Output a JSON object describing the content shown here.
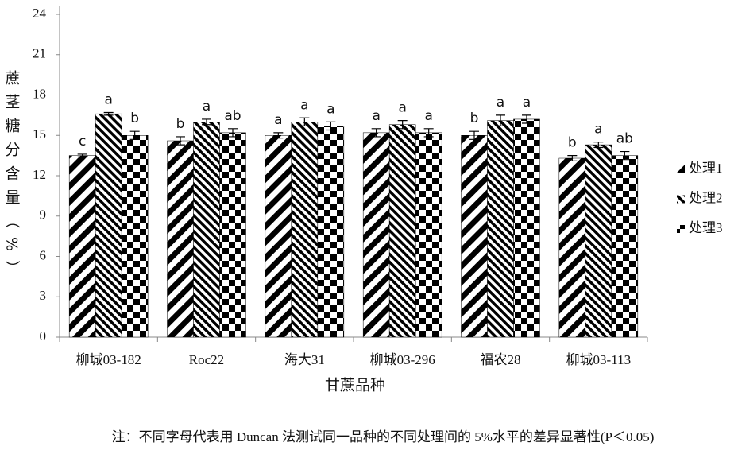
{
  "chart_data": {
    "type": "bar",
    "y_label": "蔗茎糖分含量（%）",
    "x_label": "甘蔗品种",
    "note": "注：不同字母代表用 Duncan 法测试同一品种的不同处理间的 5%水平的差异显著性(P＜0.05)",
    "categories": [
      "柳城03-182",
      "Roc22",
      "海大31",
      "柳城03-296",
      "福农28",
      "柳城03-113"
    ],
    "series": [
      {
        "name": "处理1",
        "color": "#000000",
        "pattern": "stripes",
        "values": [
          13.5,
          14.6,
          15.0,
          15.2,
          15.0,
          13.3
        ],
        "errors": [
          0.1,
          0.3,
          0.2,
          0.3,
          0.3,
          0.2
        ],
        "letters": [
          "c",
          "b",
          "a",
          "a",
          "b",
          "b"
        ]
      },
      {
        "name": "处理2",
        "color": "#000000",
        "pattern": "hatch",
        "values": [
          16.6,
          16.0,
          16.0,
          15.8,
          16.1,
          14.3
        ],
        "errors": [
          0.1,
          0.2,
          0.3,
          0.3,
          0.4,
          0.2
        ],
        "letters": [
          "a",
          "a",
          "a",
          "a",
          "a",
          "a"
        ]
      },
      {
        "name": "处理3",
        "color": "#000000",
        "pattern": "checker",
        "values": [
          15.0,
          15.2,
          15.7,
          15.2,
          16.2,
          13.5
        ],
        "errors": [
          0.3,
          0.3,
          0.3,
          0.3,
          0.3,
          0.3
        ],
        "letters": [
          "b",
          "ab",
          "a",
          "a",
          "a",
          "ab"
        ]
      }
    ],
    "ylim": [
      0,
      24
    ],
    "yticks": [
      0,
      3,
      6,
      9,
      12,
      15,
      18,
      21,
      24
    ],
    "grid": false,
    "legend": "right"
  }
}
